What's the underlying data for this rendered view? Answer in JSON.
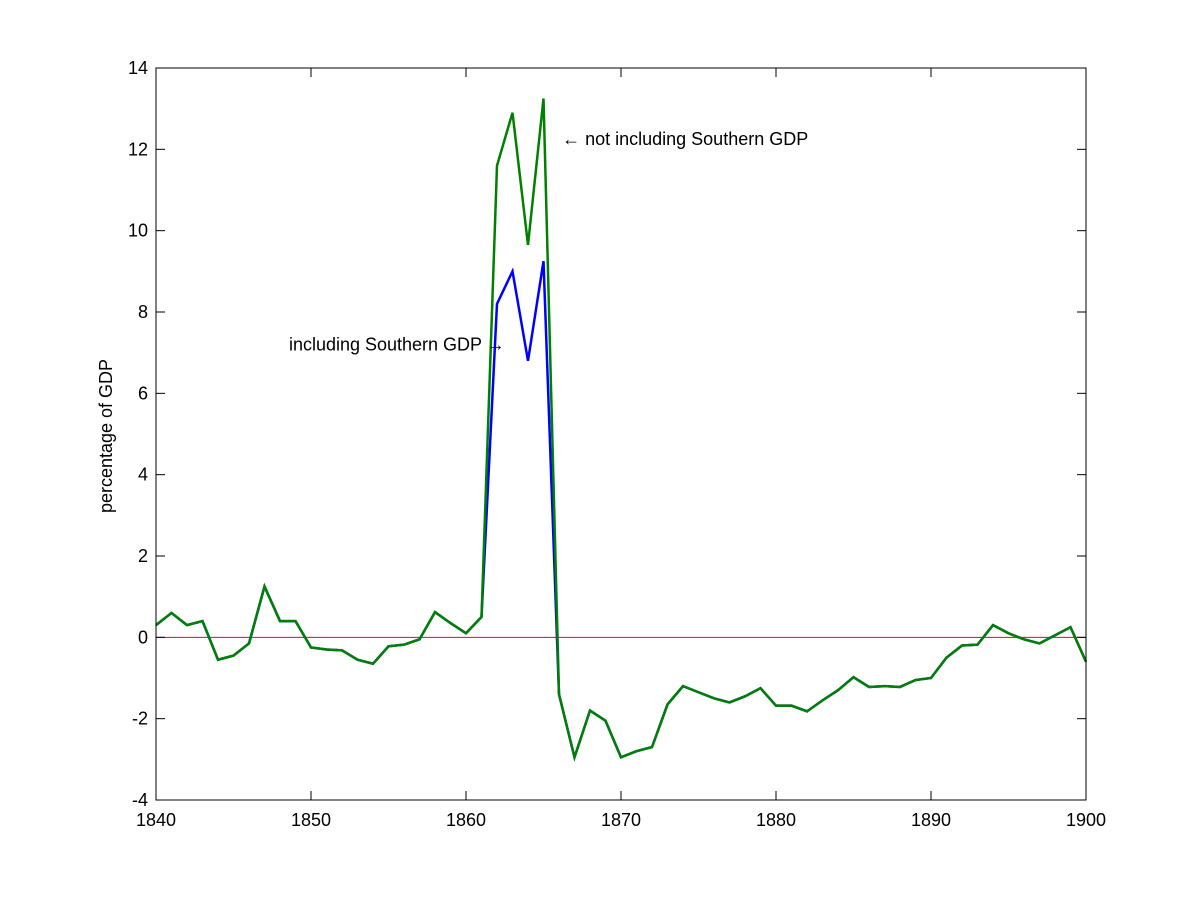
{
  "chart_data": {
    "type": "line",
    "title": "",
    "xlabel": "",
    "ylabel": "percentage of GDP",
    "xlim": [
      1840,
      1900
    ],
    "ylim": [
      -4,
      14
    ],
    "xticks": [
      1840,
      1850,
      1860,
      1870,
      1880,
      1890,
      1900
    ],
    "yticks": [
      -4,
      -2,
      0,
      2,
      4,
      6,
      8,
      10,
      12,
      14
    ],
    "grid": false,
    "legend": "none",
    "reference_line": {
      "y": 0,
      "color": "#ff0000"
    },
    "x": [
      1840,
      1841,
      1842,
      1843,
      1844,
      1845,
      1846,
      1847,
      1848,
      1849,
      1850,
      1851,
      1852,
      1853,
      1854,
      1855,
      1856,
      1857,
      1858,
      1859,
      1860,
      1861,
      1862,
      1863,
      1864,
      1865,
      1866,
      1867,
      1868,
      1869,
      1870,
      1871,
      1872,
      1873,
      1874,
      1875,
      1876,
      1877,
      1878,
      1879,
      1880,
      1881,
      1882,
      1883,
      1884,
      1885,
      1886,
      1887,
      1888,
      1889,
      1890,
      1891,
      1892,
      1893,
      1894,
      1895,
      1896,
      1897,
      1898,
      1899,
      1900
    ],
    "series": [
      {
        "color": "#0000ff",
        "values": [
          0.3,
          0.6,
          0.3,
          0.4,
          -0.55,
          -0.45,
          -0.15,
          1.25,
          0.4,
          0.4,
          -0.25,
          -0.3,
          -0.32,
          -0.55,
          -0.65,
          -0.22,
          -0.18,
          -0.05,
          0.62,
          0.35,
          0.1,
          0.5,
          8.2,
          9.0,
          6.8,
          9.25,
          -1.4,
          -2.95,
          -1.8,
          -2.05,
          -2.95,
          -2.8,
          -2.7,
          -1.65,
          -1.2,
          -1.35,
          -1.5,
          -1.6,
          -1.45,
          -1.25,
          -1.68,
          -1.68,
          -1.82,
          -1.55,
          -1.3,
          -0.98,
          -1.22,
          -1.2,
          -1.22,
          -1.05,
          -1.0,
          -0.5,
          -0.2,
          -0.18,
          0.3,
          0.1,
          -0.05,
          -0.15,
          0.05,
          0.25,
          -0.6
        ]
      },
      {
        "color": "#008000",
        "values": [
          0.3,
          0.6,
          0.3,
          0.4,
          -0.55,
          -0.45,
          -0.15,
          1.25,
          0.4,
          0.4,
          -0.25,
          -0.3,
          -0.32,
          -0.55,
          -0.65,
          -0.22,
          -0.18,
          -0.05,
          0.62,
          0.35,
          0.1,
          0.5,
          11.6,
          12.9,
          9.65,
          13.25,
          -1.4,
          -2.95,
          -1.8,
          -2.05,
          -2.95,
          -2.8,
          -2.7,
          -1.65,
          -1.2,
          -1.35,
          -1.5,
          -1.6,
          -1.45,
          -1.25,
          -1.68,
          -1.68,
          -1.82,
          -1.55,
          -1.3,
          -0.98,
          -1.22,
          -1.2,
          -1.22,
          -1.05,
          -1.0,
          -0.5,
          -0.2,
          -0.18,
          0.3,
          0.1,
          -0.05,
          -0.15,
          0.05,
          0.25,
          -0.6
        ]
      }
    ],
    "annotations": [
      {
        "text": "← not including Southern GDP",
        "x": 1866.2,
        "y": 12.25,
        "anchor": "start"
      },
      {
        "text": "including Southern GDP →",
        "x": 1862.5,
        "y": 7.2,
        "anchor": "end"
      }
    ]
  }
}
